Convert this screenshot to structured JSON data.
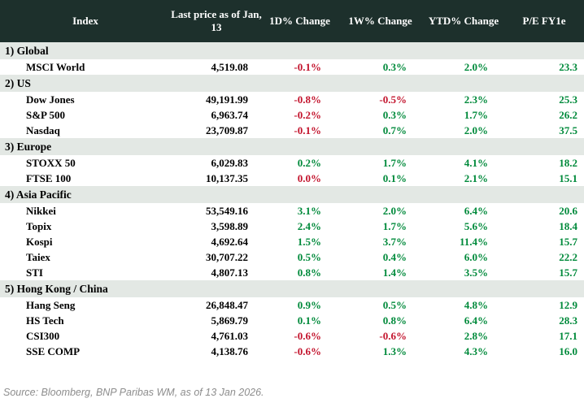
{
  "colors": {
    "header_bg": "#1d302c",
    "section_bg": "#e3e8e4",
    "positive": "#008a3b",
    "negative": "#c3142d",
    "header_text": "#ffffff"
  },
  "footer": {
    "source": "Source: Bloomberg, BNP Paribas WM, as of 13 Jan 2026."
  },
  "chart_data": {
    "type": "table",
    "columns": [
      "Index",
      "Last price as of Jan, 13",
      "1D% Change",
      "1W% Change",
      "YTD% Change",
      "P/E FY1e"
    ],
    "sections": [
      {
        "label": "1) Global",
        "rows": [
          {
            "index": "MSCI World",
            "last_price": "4,519.08",
            "d1": "-0.1%",
            "d1_color": "neg",
            "w1": "0.3%",
            "w1_color": "pos",
            "ytd": "2.0%",
            "ytd_color": "pos",
            "pe": "23.3",
            "pe_color": "pos"
          }
        ]
      },
      {
        "label": "2) US",
        "rows": [
          {
            "index": "Dow Jones",
            "last_price": "49,191.99",
            "d1": "-0.8%",
            "d1_color": "neg",
            "w1": "-0.5%",
            "w1_color": "neg",
            "ytd": "2.3%",
            "ytd_color": "pos",
            "pe": "25.3",
            "pe_color": "pos"
          },
          {
            "index": "S&P 500",
            "last_price": "6,963.74",
            "d1": "-0.2%",
            "d1_color": "neg",
            "w1": "0.3%",
            "w1_color": "pos",
            "ytd": "1.7%",
            "ytd_color": "pos",
            "pe": "26.2",
            "pe_color": "pos"
          },
          {
            "index": "Nasdaq",
            "last_price": "23,709.87",
            "d1": "-0.1%",
            "d1_color": "neg",
            "w1": "0.7%",
            "w1_color": "pos",
            "ytd": "2.0%",
            "ytd_color": "pos",
            "pe": "37.5",
            "pe_color": "pos"
          }
        ]
      },
      {
        "label": "3) Europe",
        "rows": [
          {
            "index": "STOXX 50",
            "last_price": "6,029.83",
            "d1": "0.2%",
            "d1_color": "pos",
            "w1": "1.7%",
            "w1_color": "pos",
            "ytd": "4.1%",
            "ytd_color": "pos",
            "pe": "18.2",
            "pe_color": "pos"
          },
          {
            "index": "FTSE 100",
            "last_price": "10,137.35",
            "d1": "0.0%",
            "d1_color": "neg",
            "w1": "0.1%",
            "w1_color": "pos",
            "ytd": "2.1%",
            "ytd_color": "pos",
            "pe": "15.1",
            "pe_color": "pos"
          }
        ]
      },
      {
        "label": "4) Asia Pacific",
        "rows": [
          {
            "index": "Nikkei",
            "last_price": "53,549.16",
            "d1": "3.1%",
            "d1_color": "pos",
            "w1": "2.0%",
            "w1_color": "pos",
            "ytd": "6.4%",
            "ytd_color": "pos",
            "pe": "20.6",
            "pe_color": "pos"
          },
          {
            "index": "Topix",
            "last_price": "3,598.89",
            "d1": "2.4%",
            "d1_color": "pos",
            "w1": "1.7%",
            "w1_color": "pos",
            "ytd": "5.6%",
            "ytd_color": "pos",
            "pe": "18.4",
            "pe_color": "pos"
          },
          {
            "index": "Kospi",
            "last_price": "4,692.64",
            "d1": "1.5%",
            "d1_color": "pos",
            "w1": "3.7%",
            "w1_color": "pos",
            "ytd": "11.4%",
            "ytd_color": "pos",
            "pe": "15.7",
            "pe_color": "pos"
          },
          {
            "index": "Taiex",
            "last_price": "30,707.22",
            "d1": "0.5%",
            "d1_color": "pos",
            "w1": "0.4%",
            "w1_color": "pos",
            "ytd": "6.0%",
            "ytd_color": "pos",
            "pe": "22.2",
            "pe_color": "pos"
          },
          {
            "index": "STI",
            "last_price": "4,807.13",
            "d1": "0.8%",
            "d1_color": "pos",
            "w1": "1.4%",
            "w1_color": "pos",
            "ytd": "3.5%",
            "ytd_color": "pos",
            "pe": "15.7",
            "pe_color": "pos"
          }
        ]
      },
      {
        "label": "5) Hong Kong / China",
        "rows": [
          {
            "index": "Hang Seng",
            "last_price": "26,848.47",
            "d1": "0.9%",
            "d1_color": "pos",
            "w1": "0.5%",
            "w1_color": "pos",
            "ytd": "4.8%",
            "ytd_color": "pos",
            "pe": "12.9",
            "pe_color": "pos"
          },
          {
            "index": "HS Tech",
            "last_price": "5,869.79",
            "d1": "0.1%",
            "d1_color": "pos",
            "w1": "0.8%",
            "w1_color": "pos",
            "ytd": "6.4%",
            "ytd_color": "pos",
            "pe": "28.3",
            "pe_color": "pos"
          },
          {
            "index": "CSI300",
            "last_price": "4,761.03",
            "d1": "-0.6%",
            "d1_color": "neg",
            "w1": "-0.6%",
            "w1_color": "neg",
            "ytd": "2.8%",
            "ytd_color": "pos",
            "pe": "17.1",
            "pe_color": "pos"
          },
          {
            "index": "SSE COMP",
            "last_price": "4,138.76",
            "d1": "-0.6%",
            "d1_color": "neg",
            "w1": "1.3%",
            "w1_color": "pos",
            "ytd": "4.3%",
            "ytd_color": "pos",
            "pe": "16.0",
            "pe_color": "pos"
          }
        ]
      }
    ]
  }
}
